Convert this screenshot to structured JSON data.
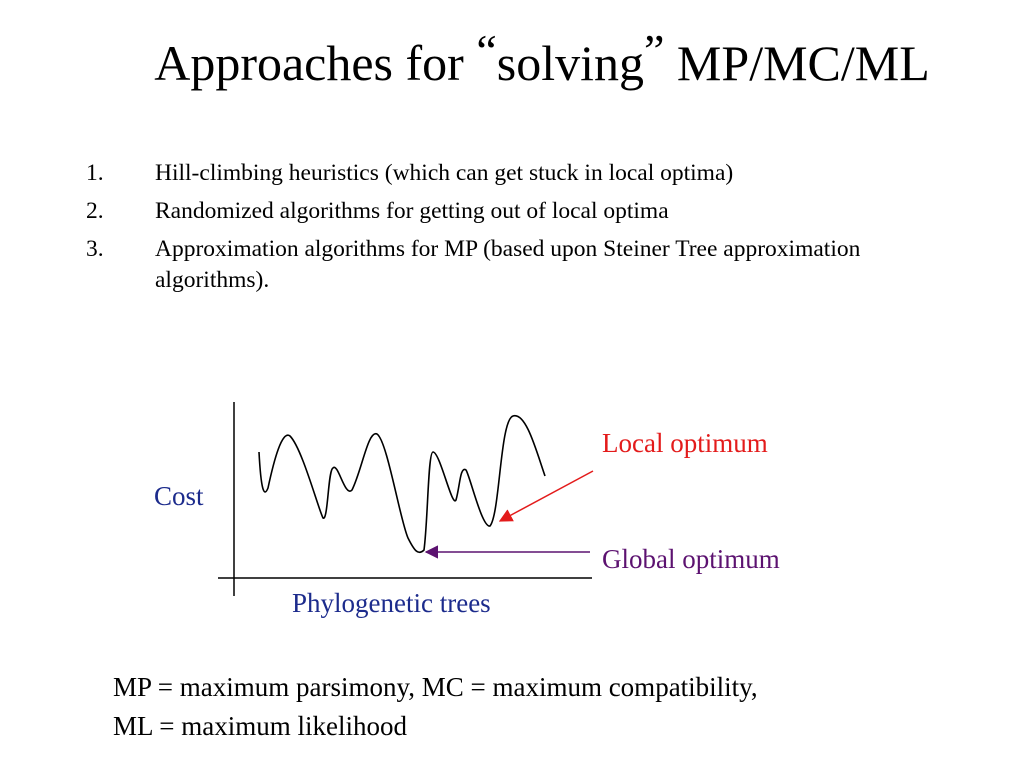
{
  "slide": {
    "title_before": "Approaches for ",
    "title_open_quote": "“",
    "title_word": "solving",
    "title_close_quote": "”",
    "title_after": " MP/MC/ML"
  },
  "list": {
    "items": [
      {
        "number": "1.",
        "text": "Hill-climbing heuristics (which can get stuck in local optima)"
      },
      {
        "number": "2.",
        "text": "Randomized algorithms for getting out of local optima"
      },
      {
        "number": "3.",
        "text": "Approximation algorithms for MP (based upon Steiner Tree approximation algorithms)."
      }
    ]
  },
  "diagram": {
    "y_label": "Cost",
    "x_label": "Phylogenetic trees",
    "local_label": "Local optimum",
    "global_label": "Global optimum",
    "colors": {
      "axis_labels": "#1c2b8c",
      "local": "#e31b1b",
      "global": "#5c1270",
      "curve": "#000000"
    }
  },
  "footer": {
    "line1": "MP = maximum parsimony, MC = maximum compatibility,",
    "line2": "ML = maximum likelihood"
  }
}
